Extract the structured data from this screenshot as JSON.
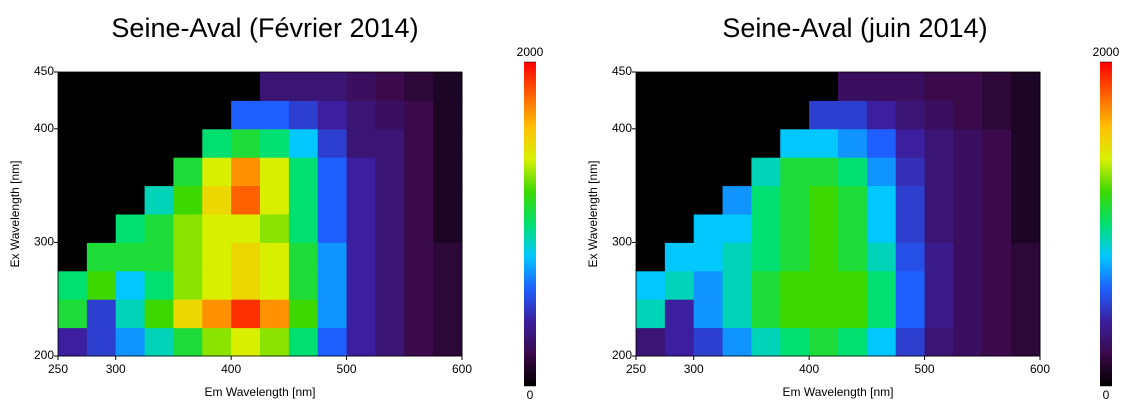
{
  "chart_data": [
    {
      "type": "heatmap",
      "title": "Seine-Aval (Février 2014)",
      "x_label": "Em Wavelength [nm]",
      "y_label": "Ex Wavelength [nm]",
      "xbins": [
        250,
        275,
        300,
        325,
        350,
        375,
        400,
        425,
        450,
        475,
        500,
        525,
        550,
        575,
        600
      ],
      "ybins": [
        200,
        225,
        250,
        275,
        300,
        325,
        350,
        375,
        400,
        425,
        450
      ],
      "xlim": [
        250,
        600
      ],
      "xticks": [
        250,
        300,
        400,
        500,
        600
      ],
      "ylim": [
        200,
        450
      ],
      "yticks": [
        200,
        300,
        400,
        450
      ],
      "zlim": [
        0,
        2000
      ],
      "zticks": [
        0,
        2000
      ],
      "colorscale": [
        "#000000",
        "#3a0a4a",
        "#3b1f9e",
        "#1f5fff",
        "#00c8ff",
        "#00e070",
        "#3cd800",
        "#d8f000",
        "#ffc000",
        "#ff6000",
        "#ff0000"
      ],
      "z": [
        [
          400,
          500,
          700,
          900,
          1100,
          1300,
          1400,
          1300,
          1000,
          600,
          400,
          300,
          200,
          150
        ],
        [
          1100,
          500,
          900,
          1200,
          1500,
          1700,
          1900,
          1700,
          1200,
          700,
          400,
          300,
          200,
          150
        ],
        [
          1000,
          1200,
          800,
          1000,
          1300,
          1400,
          1500,
          1400,
          1100,
          700,
          400,
          300,
          200,
          150
        ],
        [
          0,
          1100,
          1100,
          1100,
          1300,
          1400,
          1500,
          1400,
          1100,
          700,
          400,
          300,
          200,
          150
        ],
        [
          0,
          0,
          1000,
          1100,
          1300,
          1400,
          1400,
          1300,
          1000,
          600,
          400,
          300,
          200,
          100
        ],
        [
          0,
          0,
          0,
          900,
          1200,
          1500,
          1800,
          1400,
          1000,
          600,
          400,
          300,
          200,
          100
        ],
        [
          0,
          0,
          0,
          0,
          1100,
          1400,
          1700,
          1400,
          1000,
          600,
          400,
          300,
          200,
          100
        ],
        [
          0,
          0,
          0,
          0,
          0,
          1000,
          1100,
          1000,
          800,
          500,
          300,
          300,
          200,
          100
        ],
        [
          0,
          0,
          0,
          0,
          0,
          0,
          600,
          600,
          500,
          400,
          300,
          250,
          200,
          100
        ],
        [
          0,
          0,
          0,
          0,
          0,
          0,
          0,
          300,
          300,
          300,
          250,
          200,
          150,
          100
        ]
      ]
    },
    {
      "type": "heatmap",
      "title": "Seine-Aval (juin 2014)",
      "x_label": "Em Wavelength [nm]",
      "y_label": "Ex Wavelength [nm]",
      "xbins": [
        250,
        275,
        300,
        325,
        350,
        375,
        400,
        425,
        450,
        475,
        500,
        525,
        550,
        575,
        600
      ],
      "ybins": [
        200,
        225,
        250,
        275,
        300,
        325,
        350,
        375,
        400,
        425,
        450
      ],
      "xlim": [
        250,
        600
      ],
      "xticks": [
        250,
        300,
        400,
        500,
        600
      ],
      "ylim": [
        200,
        450
      ],
      "yticks": [
        200,
        300,
        400,
        450
      ],
      "zlim": [
        0,
        2000
      ],
      "zticks": [
        0,
        2000
      ],
      "colorscale": [
        "#000000",
        "#3a0a4a",
        "#3b1f9e",
        "#1f5fff",
        "#00c8ff",
        "#00e070",
        "#3cd800",
        "#d8f000",
        "#ffc000",
        "#ff6000",
        "#ff0000"
      ],
      "z": [
        [
          300,
          400,
          500,
          700,
          900,
          1000,
          1100,
          1000,
          800,
          500,
          300,
          250,
          200,
          150
        ],
        [
          900,
          400,
          700,
          900,
          1100,
          1200,
          1200,
          1200,
          1000,
          600,
          350,
          250,
          200,
          150
        ],
        [
          800,
          900,
          700,
          900,
          1100,
          1200,
          1200,
          1200,
          1000,
          600,
          350,
          250,
          200,
          150
        ],
        [
          0,
          800,
          800,
          900,
          1000,
          1100,
          1200,
          1100,
          900,
          550,
          350,
          250,
          200,
          150
        ],
        [
          0,
          0,
          800,
          800,
          1000,
          1100,
          1200,
          1100,
          800,
          500,
          300,
          250,
          200,
          100
        ],
        [
          0,
          0,
          0,
          700,
          1000,
          1100,
          1200,
          1100,
          800,
          500,
          300,
          250,
          200,
          100
        ],
        [
          0,
          0,
          0,
          0,
          900,
          1100,
          1100,
          1000,
          700,
          450,
          300,
          250,
          200,
          100
        ],
        [
          0,
          0,
          0,
          0,
          0,
          800,
          800,
          700,
          600,
          400,
          300,
          250,
          200,
          100
        ],
        [
          0,
          0,
          0,
          0,
          0,
          0,
          500,
          500,
          400,
          300,
          250,
          200,
          150,
          100
        ],
        [
          0,
          0,
          0,
          0,
          0,
          0,
          0,
          250,
          250,
          250,
          200,
          200,
          150,
          100
        ]
      ]
    }
  ]
}
